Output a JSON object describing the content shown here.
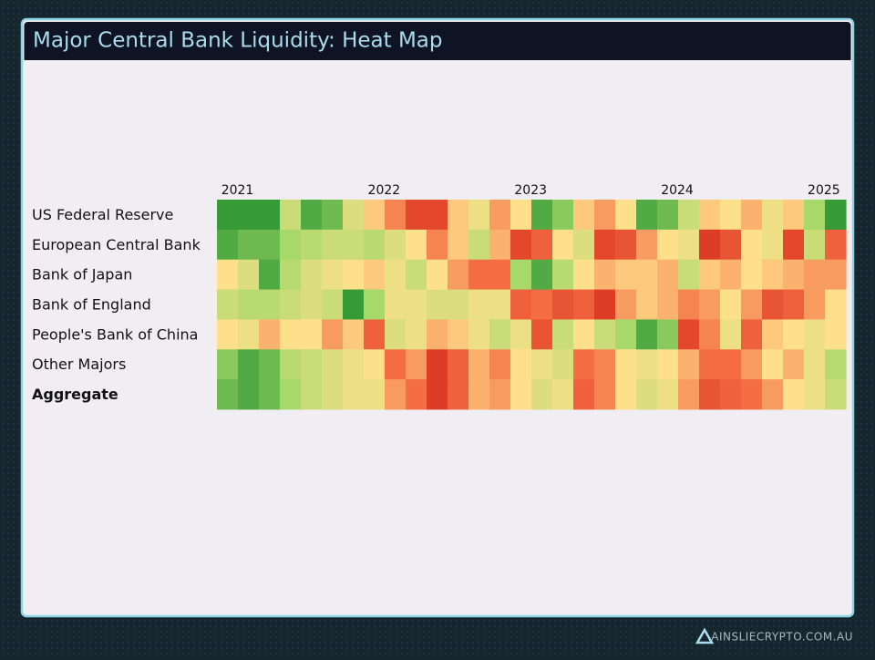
{
  "header": {
    "title": "Major Central Bank Liquidity: Heat Map"
  },
  "chart_data": {
    "type": "heatmap",
    "xlim": [
      2020.86,
      2025.15
    ],
    "xticks": [
      2021,
      2022,
      2023,
      2024,
      2025
    ],
    "zlim": [
      -1,
      1
    ],
    "colors": [
      "#d7301f",
      "#f46d43",
      "#fee08b",
      "#a6d96a",
      "#1a8a2a"
    ],
    "series": [
      {
        "name": "US Federal Reserve",
        "values": [
          0.9,
          0.9,
          0.9,
          0.3,
          0.8,
          0.7,
          0.2,
          -0.1,
          -0.4,
          -0.8,
          -0.8,
          -0.1,
          0.1,
          -0.3,
          0,
          0.8,
          0.6,
          -0.1,
          -0.3,
          0,
          0.8,
          0.7,
          0.3,
          -0.1,
          0,
          -0.2,
          0.1,
          -0.1,
          0.5,
          0.9
        ]
      },
      {
        "name": "European Central Bank",
        "values": [
          0.8,
          0.7,
          0.7,
          0.5,
          0.4,
          0.3,
          0.3,
          0.4,
          0.2,
          0,
          -0.4,
          -0.1,
          0.3,
          -0.2,
          -0.8,
          -0.6,
          0,
          0.2,
          -0.8,
          -0.7,
          -0.3,
          0,
          0.1,
          -0.9,
          -0.7,
          0,
          0.1,
          -0.8,
          0.3,
          -0.6
        ]
      },
      {
        "name": "Bank of Japan",
        "values": [
          0,
          0.2,
          0.8,
          0.4,
          0.2,
          0.1,
          0,
          -0.1,
          0.1,
          0.3,
          0,
          -0.3,
          -0.5,
          -0.5,
          0.5,
          0.8,
          0.4,
          0,
          -0.2,
          -0.1,
          -0.1,
          -0.2,
          0.3,
          -0.1,
          -0.2,
          0,
          -0.1,
          -0.2,
          -0.3,
          -0.3
        ]
      },
      {
        "name": "Bank of England",
        "values": [
          0.3,
          0.4,
          0.4,
          0.3,
          0.2,
          0.3,
          0.9,
          0.5,
          0.1,
          0.1,
          0.2,
          0.2,
          0.1,
          0.1,
          -0.6,
          -0.5,
          -0.7,
          -0.6,
          -0.9,
          -0.3,
          -0.1,
          -0.2,
          -0.4,
          -0.3,
          0,
          -0.3,
          -0.7,
          -0.6,
          -0.3,
          0
        ]
      },
      {
        "name": "People's Bank of China",
        "values": [
          0,
          0.1,
          -0.2,
          0,
          0,
          -0.3,
          -0.1,
          -0.6,
          0.2,
          0.1,
          -0.2,
          -0.1,
          0.1,
          0.3,
          0.1,
          -0.7,
          0.3,
          0,
          0.3,
          0.5,
          0.8,
          0.6,
          -0.8,
          -0.4,
          0.1,
          -0.6,
          -0.1,
          0,
          0.1,
          0
        ]
      },
      {
        "name": "Other Majors",
        "values": [
          0.6,
          0.8,
          0.7,
          0.4,
          0.3,
          0.2,
          0.1,
          0,
          -0.5,
          -0.3,
          -0.9,
          -0.6,
          -0.2,
          -0.4,
          0,
          0.1,
          0.2,
          -0.5,
          -0.4,
          0,
          0.1,
          0,
          -0.2,
          -0.5,
          -0.5,
          -0.3,
          0,
          -0.2,
          0.1,
          0.4
        ]
      },
      {
        "name": "Aggregate",
        "bold": true,
        "values": [
          0.7,
          0.8,
          0.7,
          0.5,
          0.3,
          0.2,
          0.1,
          0.1,
          -0.3,
          -0.5,
          -0.9,
          -0.6,
          -0.2,
          -0.3,
          0,
          0.2,
          0.1,
          -0.6,
          -0.4,
          0,
          0.2,
          0.1,
          -0.3,
          -0.7,
          -0.6,
          -0.5,
          -0.3,
          0,
          0.1,
          0.3
        ]
      }
    ]
  },
  "footer": {
    "site": "AINSLIECRYPTO.COM.AU"
  }
}
